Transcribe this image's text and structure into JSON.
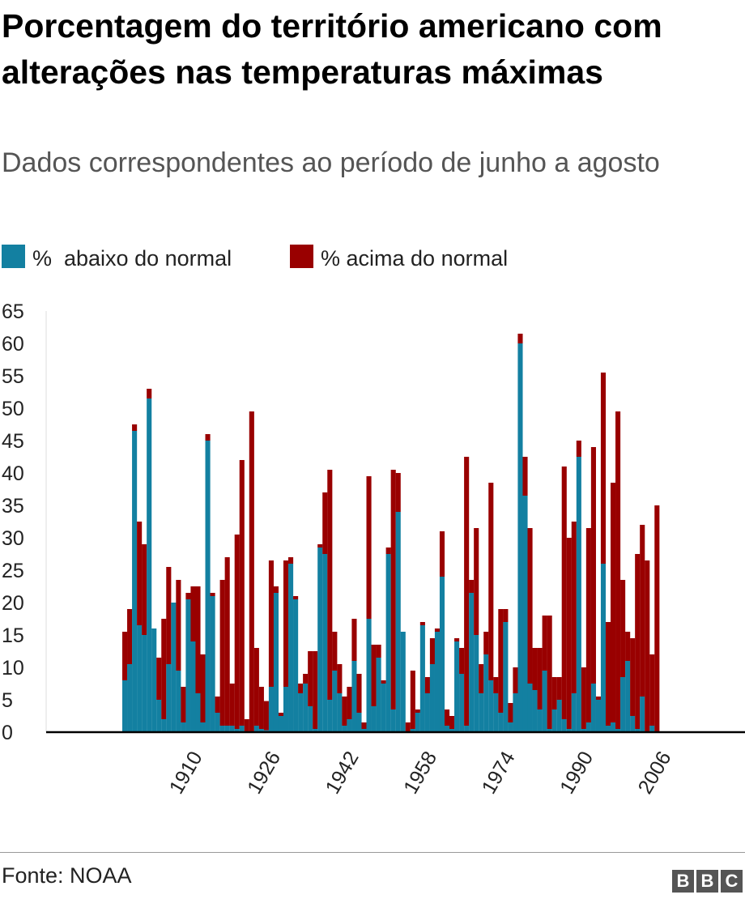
{
  "header": {
    "title": "Porcentagem do território americano com alterações nas temperaturas máximas",
    "subtitle": "Dados correspondentes ao período de junho a agosto"
  },
  "legend": [
    {
      "label": "%  abaixo do normal",
      "color": "#1380A1"
    },
    {
      "label": "% acima do normal",
      "color": "#990000"
    }
  ],
  "footer": {
    "source": "Fonte: NOAA",
    "logo": [
      "B",
      "B",
      "C"
    ]
  },
  "chart_data": {
    "type": "bar",
    "stacked": true,
    "x_start": 1895,
    "x_tick_labels": [
      "1910",
      "1926",
      "1942",
      "1958",
      "1974",
      "1990",
      "2006"
    ],
    "y_ticks": [
      0,
      5,
      10,
      15,
      20,
      25,
      30,
      35,
      40,
      45,
      50,
      55,
      60,
      65
    ],
    "ylim": [
      0,
      65
    ],
    "series": [
      {
        "name": "%  abaixo do normal",
        "color": "#1380A1",
        "values": [
          8,
          10.5,
          46.5,
          16.5,
          15,
          51.5,
          16,
          5,
          2,
          10.5,
          20,
          9.5,
          1.5,
          20.5,
          14,
          6,
          1.5,
          45,
          21,
          3,
          1,
          1,
          1,
          0.5,
          1,
          0,
          0,
          1,
          0.5,
          0.3,
          7,
          21.5,
          2.5,
          7,
          26,
          20.5,
          6,
          7.5,
          4,
          0.5,
          28.5,
          27.5,
          5,
          9.5,
          6,
          1,
          2,
          11,
          3,
          0.5,
          17.5,
          4,
          11.5,
          7.5,
          27.5,
          3.5,
          34,
          15.5,
          0,
          0.5,
          3,
          16.5,
          6,
          10.5,
          15.5,
          24,
          1,
          0.5,
          14,
          9,
          1,
          21.5,
          15,
          6,
          12,
          8,
          6,
          3,
          17,
          1.5,
          6,
          60,
          36.5,
          7.5,
          6.5,
          3.5,
          9.5,
          0.5,
          3.5,
          5,
          2,
          0.5,
          6,
          42.5,
          0.5,
          1.5,
          7.5,
          5,
          26,
          1,
          1.5,
          0.5,
          8.5,
          11,
          2.5,
          0.5,
          5.5,
          0,
          1,
          0
        ]
      },
      {
        "name": "% acima do normal",
        "color": "#990000",
        "values": [
          7.5,
          8.5,
          1,
          16,
          14,
          1.5,
          0,
          6.5,
          15.5,
          15,
          0,
          14,
          5.5,
          1,
          8.5,
          16.5,
          10.5,
          1,
          0.5,
          2.5,
          22.5,
          26,
          6.5,
          30,
          41,
          2,
          49.5,
          12,
          6.5,
          4.5,
          19.5,
          1,
          0.5,
          19.5,
          1,
          0.5,
          1.5,
          1.5,
          8.5,
          12,
          0.5,
          9.5,
          35.5,
          6,
          4.5,
          4.5,
          5,
          6.5,
          6,
          1,
          22,
          9.5,
          2,
          0.5,
          1,
          37,
          6,
          0,
          1.5,
          9,
          0.5,
          0.5,
          2.5,
          4,
          0.5,
          7,
          2.5,
          2,
          0.5,
          4,
          41.5,
          2,
          16.5,
          4.5,
          3.5,
          30.5,
          2.5,
          16,
          2,
          3,
          4,
          1.5,
          6,
          24,
          6.5,
          9.5,
          8.5,
          17.5,
          5,
          3.5,
          39,
          29.5,
          26.5,
          2.5,
          9.5,
          30,
          36.5,
          0.5,
          29.5,
          16,
          37,
          49,
          15,
          4.5,
          12,
          27,
          26.5,
          26.5,
          11,
          35
        ]
      }
    ]
  }
}
